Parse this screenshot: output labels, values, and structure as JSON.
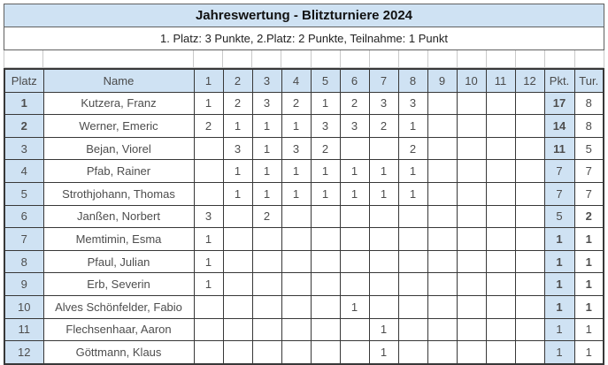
{
  "title": "Jahreswertung - Blitzturniere 2024",
  "subtitle": "1. Platz: 3 Punkte, 2.Platz: 2 Punkte, Teilnahme: 1 Punkt",
  "colors": {
    "accent_blue": "#cfe2f3",
    "border_dark": "#383838",
    "border_light": "#c9c9c9",
    "box_border": "#606060"
  },
  "table": {
    "headers": {
      "platz": "Platz",
      "name": "Name",
      "pkt": "Pkt.",
      "tur": "Tur."
    },
    "round_headers": [
      {
        "label": "1",
        "bold": false
      },
      {
        "label": "2",
        "bold": true
      },
      {
        "label": "3",
        "bold": false
      },
      {
        "label": "4",
        "bold": false
      },
      {
        "label": "5",
        "bold": false
      },
      {
        "label": "6",
        "bold": false
      },
      {
        "label": "7",
        "bold": false
      },
      {
        "label": "8",
        "bold": false
      },
      {
        "label": "9",
        "bold": false
      },
      {
        "label": "10",
        "bold": false
      },
      {
        "label": "11",
        "bold": false
      },
      {
        "label": "12",
        "bold": true
      }
    ],
    "rows": [
      {
        "platz": "1",
        "platz_bold": true,
        "name": "Kutzera, Franz",
        "scores": [
          "1",
          "2",
          "3",
          "2",
          "1",
          "2",
          "3",
          "3",
          "",
          "",
          "",
          ""
        ],
        "pkt": "17",
        "pkt_bold": true,
        "tur": "8",
        "tur_bold": false
      },
      {
        "platz": "2",
        "platz_bold": true,
        "name": "Werner, Emeric",
        "scores": [
          "2",
          "1",
          "1",
          "1",
          "3",
          "3",
          "2",
          "1",
          "",
          "",
          "",
          ""
        ],
        "pkt": "14",
        "pkt_bold": true,
        "tur": "8",
        "tur_bold": false
      },
      {
        "platz": "3",
        "platz_bold": false,
        "name": "Bejan, Viorel",
        "scores": [
          "",
          "3",
          "1",
          "3",
          "2",
          "",
          "",
          "2",
          "",
          "",
          "",
          ""
        ],
        "pkt": "11",
        "pkt_bold": true,
        "tur": "5",
        "tur_bold": false
      },
      {
        "platz": "4",
        "platz_bold": false,
        "name": "Pfab, Rainer",
        "scores": [
          "",
          "1",
          "1",
          "1",
          "1",
          "1",
          "1",
          "1",
          "",
          "",
          "",
          ""
        ],
        "pkt": "7",
        "pkt_bold": false,
        "tur": "7",
        "tur_bold": false
      },
      {
        "platz": "5",
        "platz_bold": false,
        "name": "Strothjohann, Thomas",
        "scores": [
          "",
          "1",
          "1",
          "1",
          "1",
          "1",
          "1",
          "1",
          "",
          "",
          "",
          ""
        ],
        "pkt": "7",
        "pkt_bold": false,
        "tur": "7",
        "tur_bold": false
      },
      {
        "platz": "6",
        "platz_bold": false,
        "name": "Janßen, Norbert",
        "scores": [
          "3",
          "",
          "2",
          "",
          "",
          "",
          "",
          "",
          "",
          "",
          "",
          ""
        ],
        "pkt": "5",
        "pkt_bold": false,
        "tur": "2",
        "tur_bold": true
      },
      {
        "platz": "7",
        "platz_bold": false,
        "name": "Memtimin, Esma",
        "scores": [
          "1",
          "",
          "",
          "",
          "",
          "",
          "",
          "",
          "",
          "",
          "",
          ""
        ],
        "pkt": "1",
        "pkt_bold": true,
        "tur": "1",
        "tur_bold": true
      },
      {
        "platz": "8",
        "platz_bold": false,
        "name": "Pfaul, Julian",
        "scores": [
          "1",
          "",
          "",
          "",
          "",
          "",
          "",
          "",
          "",
          "",
          "",
          ""
        ],
        "pkt": "1",
        "pkt_bold": true,
        "tur": "1",
        "tur_bold": true
      },
      {
        "platz": "9",
        "platz_bold": false,
        "name": "Erb, Severin",
        "scores": [
          "1",
          "",
          "",
          "",
          "",
          "",
          "",
          "",
          "",
          "",
          "",
          ""
        ],
        "pkt": "1",
        "pkt_bold": true,
        "tur": "1",
        "tur_bold": true
      },
      {
        "platz": "10",
        "platz_bold": false,
        "name": "Alves Schönfelder, Fabio",
        "scores": [
          "",
          "",
          "",
          "",
          "",
          "1",
          "",
          "",
          "",
          "",
          "",
          ""
        ],
        "pkt": "1",
        "pkt_bold": true,
        "tur": "1",
        "tur_bold": true
      },
      {
        "platz": "11",
        "platz_bold": false,
        "name": "Flechsenhaar, Aaron",
        "scores": [
          "",
          "",
          "",
          "",
          "",
          "",
          "1",
          "",
          "",
          "",
          "",
          ""
        ],
        "pkt": "1",
        "pkt_bold": false,
        "tur": "1",
        "tur_bold": false
      },
      {
        "platz": "12",
        "platz_bold": false,
        "name": "Göttmann, Klaus",
        "scores": [
          "",
          "",
          "",
          "",
          "",
          "",
          "1",
          "",
          "",
          "",
          "",
          ""
        ],
        "pkt": "1",
        "pkt_bold": false,
        "tur": "1",
        "tur_bold": false
      }
    ]
  }
}
